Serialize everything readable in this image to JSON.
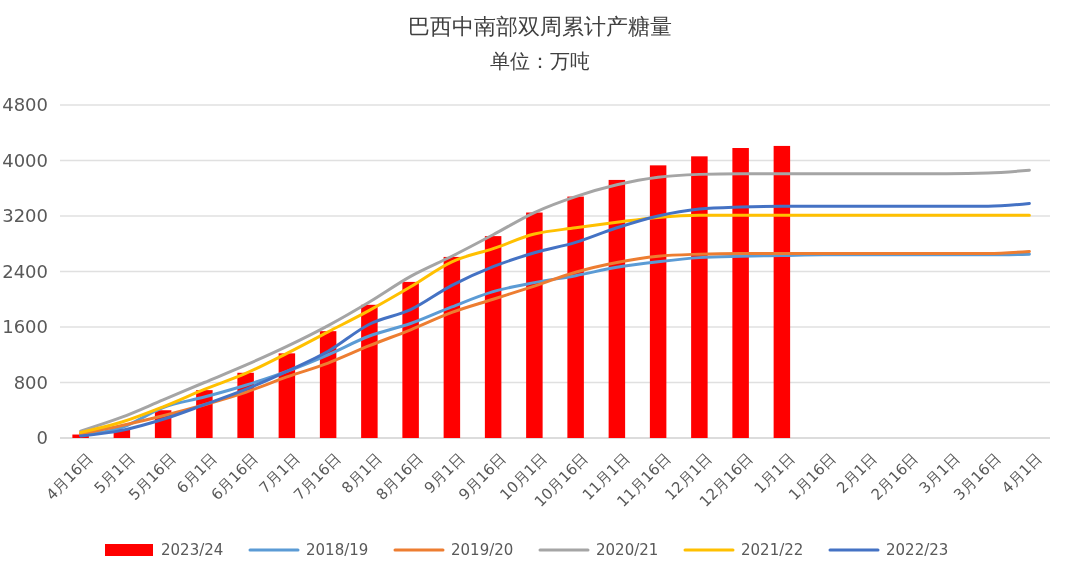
{
  "chart_data": {
    "type": "bar",
    "title": "巴西中南部双周累计产糖量",
    "subtitle": "单位：万吨",
    "categories": [
      "4月16日",
      "5月1日",
      "5月16日",
      "6月1日",
      "6月16日",
      "7月1日",
      "7月16日",
      "8月1日",
      "8月16日",
      "9月1日",
      "9月16日",
      "10月1日",
      "10月16日",
      "11月1日",
      "11月16日",
      "12月1日",
      "12月16日",
      "1月1日",
      "1月16日",
      "2月1日",
      "2月16日",
      "3月1日",
      "3月16日",
      "4月1日"
    ],
    "series": [
      {
        "name": "2023/24",
        "color": "#ff0000",
        "values": [
          50,
          130,
          400,
          690,
          940,
          1220,
          1540,
          1920,
          2250,
          2610,
          2910,
          3250,
          3480,
          3720,
          3930,
          4060,
          4180,
          4210,
          null,
          null,
          null,
          null,
          null,
          null
        ]
      },
      {
        "name": "2018/19",
        "type": "line",
        "color": "#5b9bd5",
        "values": [
          50,
          150,
          440,
          590,
          760,
          960,
          1200,
          1470,
          1650,
          1890,
          2110,
          2240,
          2340,
          2460,
          2540,
          2600,
          2620,
          2630,
          2640,
          2640,
          2640,
          2640,
          2640,
          2650
        ]
      },
      {
        "name": "2019/20",
        "type": "line",
        "color": "#ed7d31",
        "values": [
          60,
          180,
          320,
          480,
          660,
          880,
          1080,
          1330,
          1560,
          1810,
          2000,
          2190,
          2390,
          2530,
          2620,
          2650,
          2660,
          2660,
          2660,
          2660,
          2660,
          2660,
          2660,
          2690
        ]
      },
      {
        "name": "2020/21",
        "type": "line",
        "color": "#a5a5a5",
        "values": [
          100,
          300,
          550,
          800,
          1050,
          1320,
          1620,
          1960,
          2330,
          2620,
          2930,
          3250,
          3480,
          3650,
          3760,
          3800,
          3810,
          3810,
          3810,
          3810,
          3810,
          3810,
          3820,
          3860
        ]
      },
      {
        "name": "2021/22",
        "type": "line",
        "color": "#ffc000",
        "values": [
          80,
          230,
          450,
          700,
          930,
          1220,
          1530,
          1840,
          2180,
          2540,
          2730,
          2940,
          3030,
          3110,
          3180,
          3210,
          3210,
          3210,
          3210,
          3210,
          3210,
          3210,
          3210,
          3210
        ]
      },
      {
        "name": "2022/23",
        "type": "line",
        "color": "#4472c4",
        "values": [
          30,
          110,
          270,
          480,
          700,
          960,
          1250,
          1640,
          1850,
          2200,
          2470,
          2670,
          2820,
          3030,
          3200,
          3300,
          3330,
          3340,
          3340,
          3340,
          3340,
          3340,
          3340,
          3380
        ]
      }
    ],
    "ylim": [
      0,
      4800
    ],
    "yticks": [
      0,
      800,
      1600,
      2400,
      3200,
      4000,
      4800
    ],
    "grid": "y",
    "legend": "bottom"
  }
}
